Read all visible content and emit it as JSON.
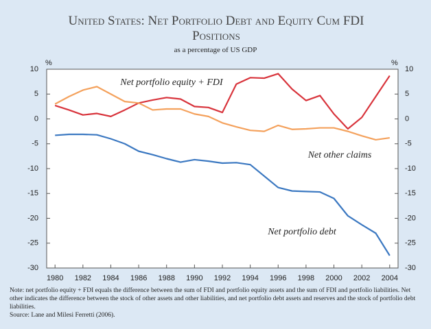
{
  "chart_data": {
    "type": "line",
    "title": "United States: Net Portfolio Debt and Equity Cum FDI Positions",
    "subtitle": "as a percentage of US GDP",
    "ylabel": "%",
    "y2label": "%",
    "x": [
      1980,
      1981,
      1982,
      1983,
      1984,
      1985,
      1986,
      1987,
      1988,
      1989,
      1990,
      1991,
      1992,
      1993,
      1994,
      1995,
      1996,
      1997,
      1998,
      1999,
      2000,
      2001,
      2002,
      2003,
      2004
    ],
    "xlim": [
      1979.4,
      2004.6
    ],
    "xticks": [
      1980,
      1982,
      1984,
      1986,
      1988,
      1990,
      1992,
      1994,
      1996,
      1998,
      2000,
      2002,
      2004
    ],
    "ylim": [
      -30,
      10
    ],
    "yticks": [
      10,
      5,
      0,
      -5,
      -10,
      -15,
      -20,
      -25,
      -30
    ],
    "y2lim": [
      -30,
      10
    ],
    "y2ticks": [
      10,
      5,
      0,
      -5,
      -10,
      -15,
      -20,
      -25,
      -30
    ],
    "grid": false,
    "series": [
      {
        "name": "Net portfolio equity + FDI",
        "color": "#d8333b",
        "values": [
          2.7,
          1.8,
          0.8,
          1.1,
          0.5,
          1.8,
          3.2,
          3.8,
          4.3,
          4.0,
          2.5,
          2.3,
          1.3,
          7.0,
          8.3,
          8.2,
          9.1,
          6.0,
          3.7,
          4.7,
          1.0,
          -2.0,
          0.3,
          4.5,
          8.7
        ]
      },
      {
        "name": "Net other claims",
        "color": "#f4a15c",
        "values": [
          3.0,
          4.5,
          5.8,
          6.5,
          5.0,
          3.5,
          3.2,
          1.8,
          2.0,
          2.0,
          1.0,
          0.5,
          -0.8,
          -1.6,
          -2.3,
          -2.5,
          -1.3,
          -2.1,
          -2.0,
          -1.8,
          -1.8,
          -2.5,
          -3.4,
          -4.2,
          -3.8
        ]
      },
      {
        "name": "Net portfolio debt",
        "color": "#3b78c1",
        "values": [
          -3.3,
          -3.1,
          -3.1,
          -3.2,
          -4.0,
          -5.0,
          -6.5,
          -7.2,
          -8.0,
          -8.7,
          -8.2,
          -8.5,
          -8.9,
          -8.8,
          -9.2,
          -11.5,
          -13.8,
          -14.5,
          -14.6,
          -14.7,
          -16.0,
          -19.5,
          -21.3,
          -23.0,
          -27.5
        ]
      }
    ],
    "note": "Note: net portfolio equity + FDI equals the difference between the sum of FDI and portfolio equity assets and the sum of FDI and portfolio liabilities. Net other indicates the difference between the stock of other assets and other liabilities, and net portfolio debt assets and reserves and the stock of portfolio debt liabilities.",
    "source": "Source: Lane and Milesi Ferretti (2006)."
  }
}
